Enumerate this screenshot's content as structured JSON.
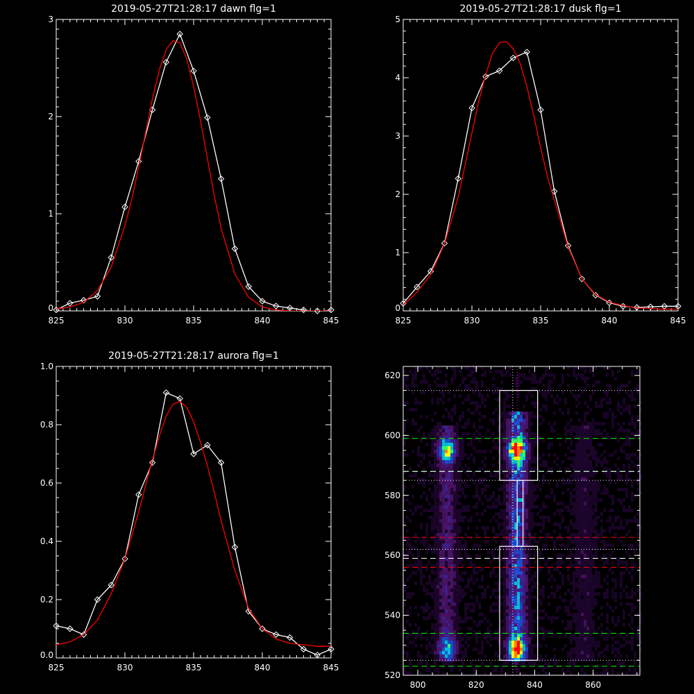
{
  "chart_data": [
    {
      "type": "line",
      "title": "2019-05-27T21:28:17 dawn flg=1",
      "xlabel": "",
      "ylabel": "",
      "xlim": [
        825,
        845
      ],
      "ylim": [
        0,
        3
      ],
      "x_ticks": [
        "825",
        "830",
        "835",
        "840",
        "845"
      ],
      "y_ticks": [
        "0",
        "1",
        "2",
        "3"
      ],
      "series": [
        {
          "color": "#ffffff",
          "markers": "diamond",
          "x": [
            825,
            826,
            827,
            828,
            829,
            830,
            831,
            832,
            833,
            834,
            835,
            836,
            837,
            838,
            839,
            840,
            841,
            842,
            843,
            844,
            845
          ],
          "y": [
            0.01,
            0.08,
            0.11,
            0.15,
            0.55,
            1.07,
            1.54,
            2.07,
            2.56,
            2.85,
            2.47,
            1.99,
            1.36,
            0.64,
            0.25,
            0.1,
            0.05,
            0.03,
            0.01,
            -0.01,
            0.01
          ]
        },
        {
          "color": "#ff0000",
          "markers": "none",
          "x": [
            825,
            826,
            827,
            828,
            829,
            830,
            830.5,
            831,
            831.5,
            832,
            832.5,
            833,
            833.5,
            834,
            834.5,
            835,
            835.5,
            836,
            836.5,
            837,
            838,
            839,
            840,
            841,
            842,
            843,
            844,
            845
          ],
          "y": [
            0.02,
            0.04,
            0.09,
            0.21,
            0.45,
            0.88,
            1.15,
            1.48,
            1.83,
            2.18,
            2.48,
            2.69,
            2.78,
            2.76,
            2.59,
            2.31,
            1.96,
            1.57,
            1.19,
            0.85,
            0.38,
            0.14,
            0.04,
            0.01,
            0.0,
            0.0,
            0.0,
            0.0
          ]
        }
      ]
    },
    {
      "type": "line",
      "title": "2019-05-27T21:28:17 dusk flg=1",
      "xlabel": "",
      "ylabel": "",
      "xlim": [
        825,
        845
      ],
      "ylim": [
        0,
        5
      ],
      "x_ticks": [
        "825",
        "830",
        "835",
        "840",
        "845"
      ],
      "y_ticks": [
        "0",
        "1",
        "2",
        "3",
        "4",
        "5"
      ],
      "series": [
        {
          "color": "#ffffff",
          "markers": "diamond",
          "x": [
            825,
            826,
            827,
            828,
            829,
            830,
            831,
            832,
            833,
            834,
            835,
            836,
            837,
            838,
            839,
            840,
            841,
            842,
            843,
            844,
            845
          ],
          "y": [
            0.13,
            0.41,
            0.68,
            1.16,
            2.27,
            3.48,
            4.02,
            4.12,
            4.34,
            4.44,
            3.45,
            2.05,
            1.12,
            0.55,
            0.27,
            0.14,
            0.08,
            0.06,
            0.07,
            0.08,
            0.08
          ]
        },
        {
          "color": "#ff0000",
          "markers": "none",
          "x": [
            825,
            826,
            827,
            828,
            829,
            829.5,
            830,
            830.5,
            831,
            831.5,
            832,
            832.5,
            833,
            833.5,
            834,
            834.5,
            835,
            835.5,
            836,
            837,
            838,
            839,
            840,
            841,
            842,
            843,
            844,
            845
          ],
          "y": [
            0.1,
            0.32,
            0.62,
            1.15,
            1.95,
            2.5,
            3.05,
            3.6,
            4.05,
            4.42,
            4.6,
            4.62,
            4.5,
            4.25,
            3.85,
            3.35,
            2.8,
            2.3,
            1.9,
            1.1,
            0.55,
            0.28,
            0.15,
            0.09,
            0.05,
            0.04,
            0.03,
            0.03
          ]
        }
      ]
    },
    {
      "type": "line",
      "title": "2019-05-27T21:28:17 aurora flg=1",
      "xlabel": "",
      "ylabel": "",
      "xlim": [
        825,
        845
      ],
      "ylim": [
        0,
        1.0
      ],
      "x_ticks": [
        "825",
        "830",
        "835",
        "840",
        "845"
      ],
      "y_ticks": [
        "0.0",
        "0.2",
        "0.4",
        "0.6",
        "0.8",
        "1.0"
      ],
      "series": [
        {
          "color": "#ffffff",
          "markers": "diamond",
          "x": [
            825,
            826,
            827,
            828,
            829,
            830,
            831,
            832,
            833,
            834,
            835,
            836,
            837,
            838,
            839,
            840,
            841,
            842,
            843,
            844,
            845
          ],
          "y": [
            0.11,
            0.1,
            0.08,
            0.2,
            0.25,
            0.34,
            0.56,
            0.67,
            0.91,
            0.89,
            0.7,
            0.73,
            0.67,
            0.38,
            0.16,
            0.1,
            0.08,
            0.07,
            0.03,
            0.01,
            0.03
          ]
        },
        {
          "color": "#ff0000",
          "markers": "none",
          "x": [
            825,
            826,
            827,
            828,
            829,
            830,
            831,
            831.5,
            832,
            832.5,
            833,
            833.5,
            834,
            834.5,
            835,
            835.5,
            836,
            836.5,
            837,
            838,
            839,
            840,
            841,
            842,
            843,
            844,
            845
          ],
          "y": [
            0.045,
            0.055,
            0.08,
            0.13,
            0.22,
            0.34,
            0.5,
            0.59,
            0.68,
            0.76,
            0.83,
            0.87,
            0.88,
            0.86,
            0.81,
            0.74,
            0.66,
            0.57,
            0.47,
            0.3,
            0.17,
            0.1,
            0.065,
            0.05,
            0.045,
            0.04,
            0.04
          ]
        }
      ]
    },
    {
      "type": "heatmap",
      "title": "",
      "xlim": [
        795,
        876
      ],
      "ylim": [
        520,
        623
      ],
      "x_ticks": [
        "800",
        "820",
        "840",
        "860"
      ],
      "y_ticks": [
        "520",
        "540",
        "560",
        "580",
        "600",
        "620"
      ],
      "colormap": [
        "#000000",
        "#3a0a5a",
        "#7a1fa8",
        "#5a2fd0",
        "#2060ff",
        "#00d8e8",
        "#30ff60",
        "#ffff00",
        "#ff8000",
        "#ff0000"
      ],
      "intensity_columns": [
        {
          "x_center": 810,
          "y_start": 525,
          "y_end": 603,
          "peak": 0.55
        },
        {
          "x_center": 834,
          "y_start": 525,
          "y_end": 608,
          "peak": 1.0
        },
        {
          "x_center": 857,
          "y_start": 525,
          "y_end": 603,
          "peak": 0.25
        }
      ],
      "intensity_blobs": [
        {
          "x": 834,
          "y": 595,
          "level": 1.0
        },
        {
          "x": 834,
          "y": 529,
          "level": 0.85
        },
        {
          "x": 810,
          "y": 595,
          "level": 0.7
        },
        {
          "x": 810,
          "y": 529,
          "level": 0.5
        }
      ],
      "boxes": [
        {
          "x0": 828,
          "x1": 841,
          "y0": 585,
          "y1": 615,
          "color": "#ffffff"
        },
        {
          "x0": 834,
          "x1": 836,
          "y0": 563,
          "y1": 585,
          "color": "#ffffff"
        },
        {
          "x0": 828,
          "x1": 841,
          "y0": 525,
          "y1": 563,
          "color": "#ffffff"
        }
      ],
      "hlines": [
        {
          "y": 615,
          "color": "#ffffff",
          "style": "dotted"
        },
        {
          "y": 599,
          "color": "#00ff00",
          "style": "dashed"
        },
        {
          "y": 588,
          "color": "#00ff00",
          "style": "dashed"
        },
        {
          "y": 588,
          "color": "#ffffff",
          "style": "dashed"
        },
        {
          "y": 585,
          "color": "#ffffff",
          "style": "dotted"
        },
        {
          "y": 566,
          "color": "#ff0000",
          "style": "dashed"
        },
        {
          "y": 562,
          "color": "#ffffff",
          "style": "dotted"
        },
        {
          "y": 559,
          "color": "#ffffff",
          "style": "dashed"
        },
        {
          "y": 556,
          "color": "#ff0000",
          "style": "dashed"
        },
        {
          "y": 534,
          "color": "#00ff00",
          "style": "dashed"
        },
        {
          "y": 525,
          "color": "#ffffff",
          "style": "dotted"
        },
        {
          "y": 523,
          "color": "#00ff00",
          "style": "dashed"
        }
      ],
      "vlines": [
        {
          "x": 832.5,
          "color": "#ffffff",
          "style": "dotted"
        },
        {
          "x": 834,
          "color": "#ff00ff",
          "style": "dotted"
        }
      ]
    }
  ]
}
